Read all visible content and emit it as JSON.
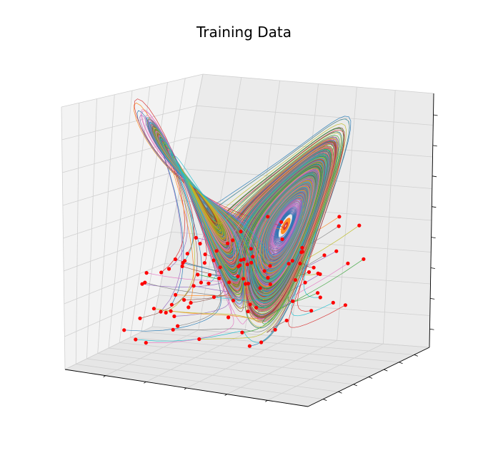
{
  "chart_data": {
    "type": "line",
    "title": "Training Data",
    "projection": "3d",
    "grid": true,
    "tick_labels_shown": false,
    "xlabel": "",
    "ylabel": "",
    "zlabel": "",
    "system": "lorenz",
    "parameters": {
      "sigma": 10,
      "rho": 28,
      "beta": 2.6667
    },
    "trajectory_count": 100,
    "xlim": [
      -20,
      20
    ],
    "ylim": [
      -25,
      25
    ],
    "zlim": [
      0,
      50
    ],
    "initial_point_color": "#ff0000",
    "initial_point_marker": "circle"
  }
}
